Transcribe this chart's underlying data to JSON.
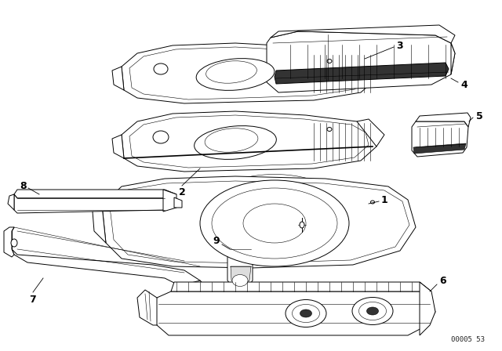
{
  "bg_color": "#ffffff",
  "line_color": "#000000",
  "figure_width": 6.4,
  "figure_height": 4.48,
  "dpi": 100,
  "watermark": "00005 53",
  "lw": 0.7,
  "lw_thick": 1.2,
  "lw_thin": 0.4,
  "fc": "#ffffff"
}
